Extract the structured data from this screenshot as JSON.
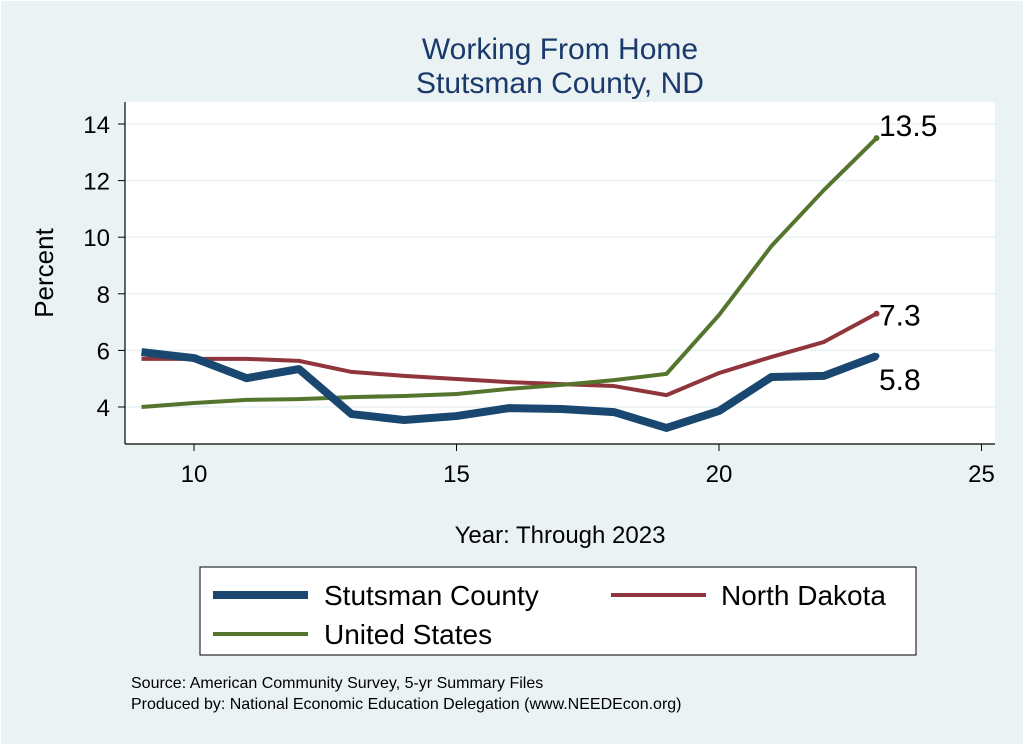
{
  "chart_data": {
    "type": "line",
    "title": "Working From Home",
    "subtitle": "Stutsman County, ND",
    "xlabel": "Year: Through 2023",
    "ylabel": "Percent",
    "xlim": [
      8.8,
      25.2
    ],
    "ylim": [
      2.7,
      14.6
    ],
    "xticks": [
      10,
      15,
      20,
      25
    ],
    "yticks": [
      4,
      6,
      8,
      10,
      12,
      14
    ],
    "grid": true,
    "legend_placement": "bottom",
    "x": [
      9,
      10,
      11,
      12,
      13,
      14,
      15,
      16,
      17,
      18,
      19,
      20,
      21,
      22,
      23
    ],
    "series": [
      {
        "name": "Stutsman County",
        "color": "#1a476f",
        "width": 8,
        "values": [
          5.94,
          5.73,
          5.02,
          5.34,
          3.75,
          3.54,
          3.68,
          3.96,
          3.93,
          3.82,
          3.26,
          3.86,
          5.06,
          5.1,
          5.8
        ]
      },
      {
        "name": "North Dakota",
        "color": "#90353b",
        "width": 4,
        "values": [
          5.7,
          5.7,
          5.7,
          5.63,
          5.24,
          5.1,
          4.99,
          4.88,
          4.81,
          4.74,
          4.42,
          5.2,
          5.77,
          6.3,
          7.3
        ]
      },
      {
        "name": "United States",
        "color": "#55752f",
        "width": 4,
        "values": [
          4.0,
          4.14,
          4.25,
          4.28,
          4.35,
          4.39,
          4.46,
          4.64,
          4.78,
          4.95,
          5.17,
          7.25,
          9.69,
          11.67,
          13.5
        ]
      }
    ],
    "annotations": [
      "13.5",
      "7.3",
      "5.8"
    ]
  },
  "notes": {
    "source": "Source: American Community Survey, 5-yr Summary Files",
    "produced": "Produced by: National Economic Education Delegation (www.NEEDEcon.org)"
  }
}
